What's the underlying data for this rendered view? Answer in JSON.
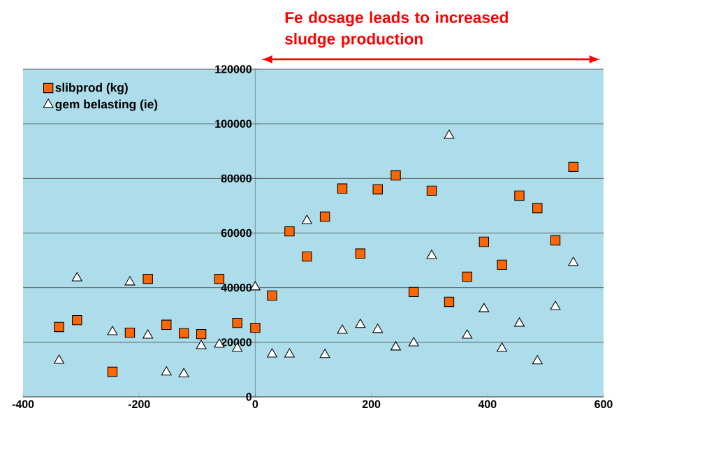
{
  "chart_data": {
    "type": "scatter",
    "annotations": [
      "Fe dosage leads to increased sludge production"
    ],
    "x": [
      -338,
      -307,
      -246,
      -216,
      -185,
      -153,
      -123,
      -93,
      -62,
      -31,
      0,
      29,
      59,
      89,
      120,
      150,
      181,
      211,
      242,
      273,
      304,
      334,
      365,
      394,
      425,
      455,
      486,
      517,
      548
    ],
    "series": [
      {
        "name": "slibprod (kg)",
        "color": "#ff6600",
        "marker": "square",
        "values": [
          25600,
          28100,
          9200,
          23500,
          43200,
          26400,
          23300,
          23000,
          43200,
          27100,
          25300,
          37100,
          60600,
          51400,
          66000,
          76300,
          52500,
          76000,
          81100,
          38400,
          75500,
          34800,
          44000,
          56800,
          48400,
          73700,
          69100,
          57300,
          84200
        ]
      },
      {
        "name": "gem belasting (ie)",
        "color": "#ffffff",
        "marker": "triangle",
        "values": [
          13300,
          43500,
          23800,
          42000,
          22500,
          9000,
          8400,
          18700,
          19200,
          17700,
          40200,
          15600,
          15600,
          64500,
          15400,
          24300,
          26400,
          24600,
          18200,
          19700,
          51700,
          95700,
          22500,
          32200,
          17700,
          26900,
          13100,
          33000,
          49100
        ]
      }
    ],
    "xlim": [
      -400,
      600
    ],
    "xticks": [
      -400,
      -200,
      0,
      200,
      400,
      600
    ],
    "ylim": [
      0,
      120000
    ],
    "yticks": [
      0,
      20000,
      40000,
      60000,
      80000,
      100000,
      120000
    ],
    "grid": "y",
    "legend": "top left"
  }
}
